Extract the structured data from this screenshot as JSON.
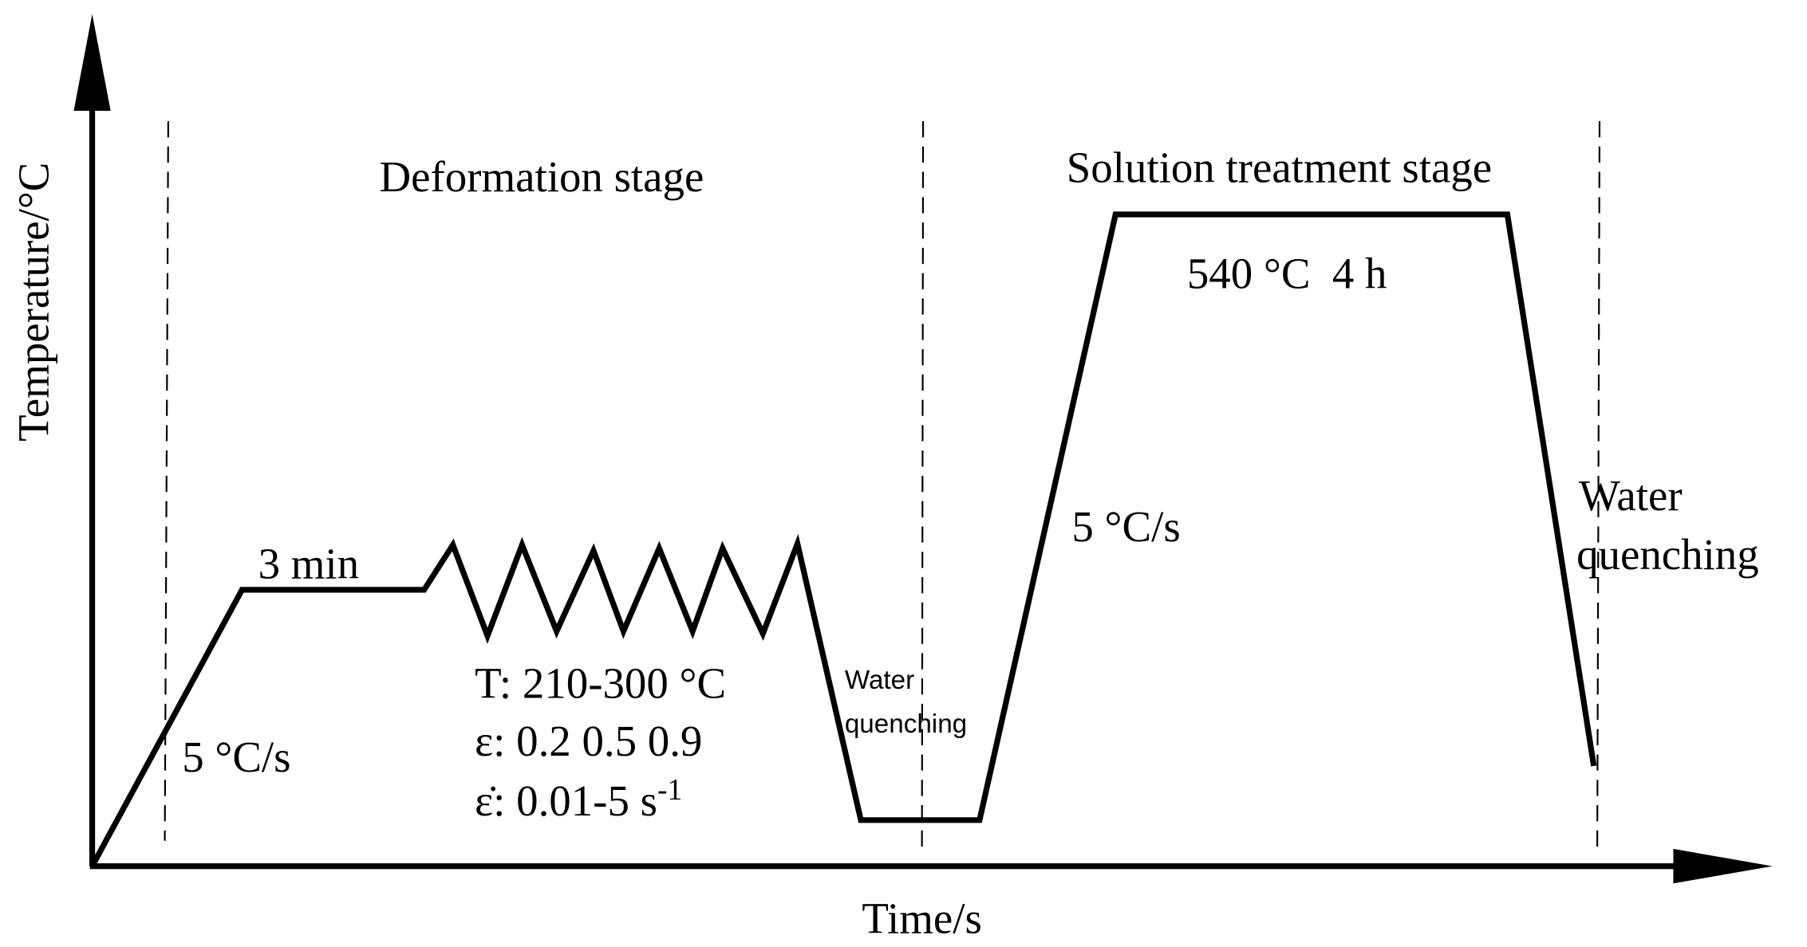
{
  "axes": {
    "y_label": "Temperature/°C",
    "x_label": "Time/s"
  },
  "stages": {
    "deformation": "Deformation stage",
    "solution": "Solution treatment stage"
  },
  "labels": {
    "hold_1": "3 min",
    "rate_1": "5 °C/s",
    "deformation_params": {
      "temperature": "T: 210-300 °C",
      "strain": "ε: 0.2 0.5 0.9",
      "strain_rate": {
        "text": "ε̇: 0.01-5 s",
        "sup": "-1"
      }
    },
    "quench_1": [
      "Water",
      "quenching"
    ],
    "rate_2": "5 °C/s",
    "hold_2": "540 °C  4 h",
    "quench_2": [
      "Water",
      "quenching"
    ]
  }
}
